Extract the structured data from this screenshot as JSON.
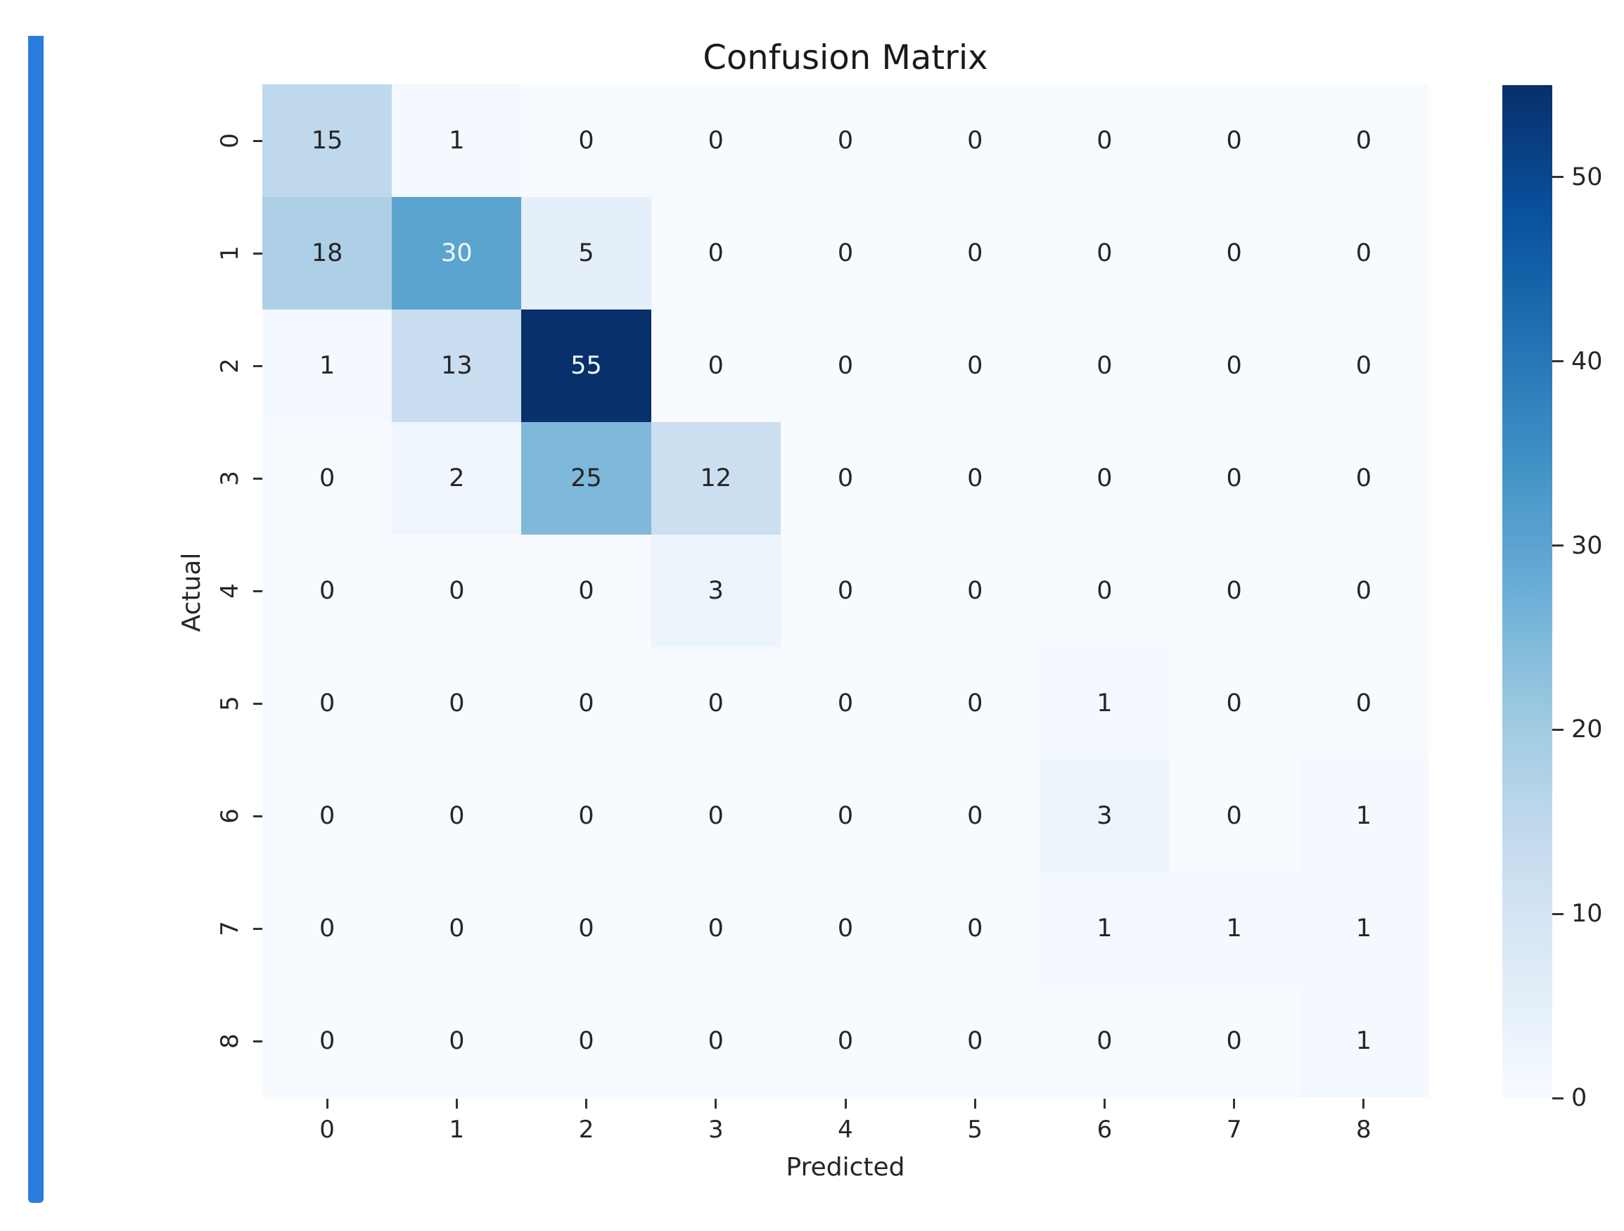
{
  "accent_color": "#2a7bde",
  "chart_data": {
    "type": "heatmap",
    "title": "Confusion Matrix",
    "xlabel": "Predicted",
    "ylabel": "Actual",
    "x_ticks": [
      "0",
      "1",
      "2",
      "3",
      "4",
      "5",
      "6",
      "7",
      "8"
    ],
    "y_ticks": [
      "0",
      "1",
      "2",
      "3",
      "4",
      "5",
      "6",
      "7",
      "8"
    ],
    "colormap": "Blues",
    "vmin": 0,
    "vmax": 55,
    "colorbar_ticks": [
      "0",
      "10",
      "20",
      "30",
      "40",
      "50"
    ],
    "matrix": [
      [
        15,
        1,
        0,
        0,
        0,
        0,
        0,
        0,
        0
      ],
      [
        18,
        30,
        5,
        0,
        0,
        0,
        0,
        0,
        0
      ],
      [
        1,
        13,
        55,
        0,
        0,
        0,
        0,
        0,
        0
      ],
      [
        0,
        2,
        25,
        12,
        0,
        0,
        0,
        0,
        0
      ],
      [
        0,
        0,
        0,
        3,
        0,
        0,
        0,
        0,
        0
      ],
      [
        0,
        0,
        0,
        0,
        0,
        0,
        1,
        0,
        0
      ],
      [
        0,
        0,
        0,
        0,
        0,
        0,
        3,
        0,
        1
      ],
      [
        0,
        0,
        0,
        0,
        0,
        0,
        1,
        1,
        1
      ],
      [
        0,
        0,
        0,
        0,
        0,
        0,
        0,
        0,
        1
      ]
    ],
    "legend_position": "right colorbar",
    "grid": false
  }
}
